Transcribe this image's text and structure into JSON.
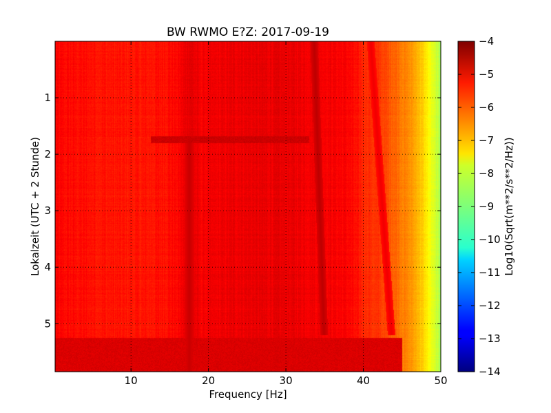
{
  "chart_data": {
    "type": "heatmap",
    "title": "BW RWMO E?Z: 2017-09-19",
    "xlabel": "Frequency [Hz]",
    "ylabel": "Lokalzeit (UTC + 2 Stunde)",
    "colorbar_label": "Log10(Sqrt(m**2/s**2/Hz))",
    "xlim": [
      0.2,
      50
    ],
    "ylim": [
      5.85,
      0.0
    ],
    "x_ticks": [
      10,
      20,
      30,
      40,
      50
    ],
    "x_tick_labels": [
      "10",
      "20",
      "30",
      "40",
      "50"
    ],
    "y_ticks": [
      1,
      2,
      3,
      4,
      5
    ],
    "y_tick_labels": [
      "1",
      "2",
      "3",
      "4",
      "5"
    ],
    "clim": [
      -14,
      -4
    ],
    "colorbar_ticks": [
      -4,
      -5,
      -6,
      -7,
      -8,
      -9,
      -10,
      -11,
      -12,
      -13,
      -14
    ],
    "colorbar_tick_labels": [
      "−4",
      "−5",
      "−6",
      "−7",
      "−8",
      "−9",
      "−10",
      "−11",
      "−12",
      "−13",
      "−14"
    ],
    "colormap": "jet",
    "grid": true,
    "grid_style": "dotted",
    "level_profile": [
      {
        "f": 0.2,
        "v": -5.3
      },
      {
        "f": 8,
        "v": -5.45
      },
      {
        "f": 12,
        "v": -5.45
      },
      {
        "f": 16,
        "v": -5.3
      },
      {
        "f": 17.5,
        "v": -4.95
      },
      {
        "f": 19,
        "v": -5.2
      },
      {
        "f": 24,
        "v": -5.05
      },
      {
        "f": 28,
        "v": -5.05
      },
      {
        "f": 30,
        "v": -5.05
      },
      {
        "f": 35,
        "v": -5.15
      },
      {
        "f": 38,
        "v": -5.25
      },
      {
        "f": 40,
        "v": -5.6
      },
      {
        "f": 42,
        "v": -5.8
      },
      {
        "f": 44,
        "v": -6.2
      },
      {
        "f": 46,
        "v": -6.7
      },
      {
        "f": 47,
        "v": -7.0
      },
      {
        "f": 48,
        "v": -7.5
      },
      {
        "f": 49,
        "v": -8.1
      },
      {
        "f": 50,
        "v": -8.6
      }
    ],
    "features": [
      {
        "kind": "drifting_line",
        "f_start": 33.6,
        "f_end": 34.9,
        "t_start": 0.0,
        "t_end": 5.2,
        "level": -4.6
      },
      {
        "kind": "drifting_line",
        "f_start": 40.9,
        "f_end": 43.6,
        "t_start": 0.0,
        "t_end": 5.2,
        "level": -5.1
      },
      {
        "kind": "constant_line",
        "f": 17.5,
        "t_start": 1.7,
        "t_end": 5.85,
        "level": -4.7
      },
      {
        "kind": "band",
        "t_start": 1.68,
        "t_end": 1.8,
        "f_start": 12.5,
        "f_end": 33,
        "level": -4.75
      },
      {
        "kind": "band",
        "t_start": 5.25,
        "t_end": 5.85,
        "f_start": 0.2,
        "f_end": 45,
        "level": -4.9
      }
    ]
  },
  "colors": {
    "axes_frame": "#000000",
    "grid": "#000000",
    "background": "#ffffff"
  }
}
